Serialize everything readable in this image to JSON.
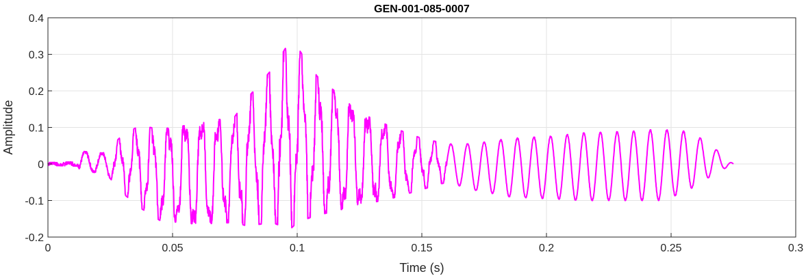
{
  "chart_data": {
    "type": "line",
    "title": "GEN-001-085-0007",
    "xlabel": "Time (s)",
    "ylabel": "Amplitude",
    "xlim": [
      0,
      0.3
    ],
    "ylim": [
      -0.2,
      0.4
    ],
    "xticks": [
      0,
      0.05,
      0.1,
      0.15,
      0.2,
      0.25,
      0.3
    ],
    "xtick_labels": [
      "0",
      "0.05",
      "0.1",
      "0.15",
      "0.2",
      "0.25",
      "0.3"
    ],
    "yticks": [
      -0.2,
      -0.1,
      0,
      0.1,
      0.2,
      0.3,
      0.4
    ],
    "ytick_labels": [
      "-0.2",
      "-0.1",
      "0",
      "0.1",
      "0.2",
      "0.3",
      "0.4"
    ],
    "grid": true,
    "box": true,
    "series": [
      {
        "color": "#ff00ff",
        "duration": 0.275,
        "envelope_peaks": [
          [
            0.0,
            0.004,
            -0.004
          ],
          [
            0.012,
            0.006,
            -0.006
          ],
          [
            0.013,
            0.035,
            -0.02
          ],
          [
            0.022,
            0.03,
            -0.025
          ],
          [
            0.025,
            0.045,
            -0.04
          ],
          [
            0.03,
            0.08,
            -0.08
          ],
          [
            0.037,
            0.105,
            -0.12
          ],
          [
            0.045,
            0.095,
            -0.155
          ],
          [
            0.06,
            0.11,
            -0.165
          ],
          [
            0.075,
            0.13,
            -0.16
          ],
          [
            0.08,
            0.18,
            -0.17
          ],
          [
            0.09,
            0.26,
            -0.16
          ],
          [
            0.097,
            0.335,
            -0.18
          ],
          [
            0.1,
            0.32,
            -0.16
          ],
          [
            0.108,
            0.24,
            -0.14
          ],
          [
            0.115,
            0.2,
            -0.13
          ],
          [
            0.125,
            0.14,
            -0.11
          ],
          [
            0.135,
            0.11,
            -0.1
          ],
          [
            0.14,
            0.095,
            -0.09
          ],
          [
            0.15,
            0.07,
            -0.07
          ],
          [
            0.16,
            0.055,
            -0.05
          ],
          [
            0.17,
            0.055,
            -0.07
          ],
          [
            0.185,
            0.07,
            -0.09
          ],
          [
            0.2,
            0.075,
            -0.095
          ],
          [
            0.215,
            0.085,
            -0.1
          ],
          [
            0.235,
            0.09,
            -0.1
          ],
          [
            0.245,
            0.095,
            -0.1
          ],
          [
            0.255,
            0.09,
            -0.08
          ],
          [
            0.262,
            0.07,
            -0.05
          ],
          [
            0.268,
            0.04,
            -0.025
          ],
          [
            0.275,
            0.0,
            0.0
          ]
        ],
        "frequency_hz": 150
      }
    ]
  }
}
